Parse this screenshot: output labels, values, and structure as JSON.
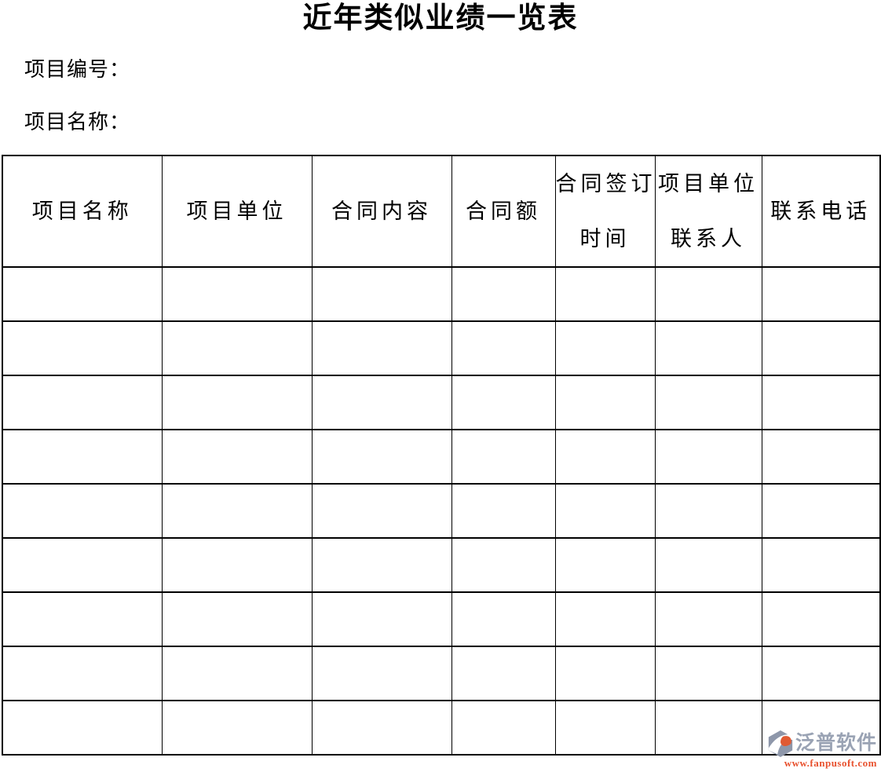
{
  "document": {
    "title": "近年类似业绩一览表",
    "fields": {
      "project_number_label": "项目编号：",
      "project_number_value": "",
      "project_name_label": "项目名称：",
      "project_name_value": ""
    }
  },
  "table": {
    "columns": [
      {
        "key": "project-name",
        "line1": "项目名称",
        "line2": ""
      },
      {
        "key": "project-unit",
        "line1": "项目单位",
        "line2": ""
      },
      {
        "key": "contract-content",
        "line1": "合同内容",
        "line2": ""
      },
      {
        "key": "contract-amount",
        "line1": "合同额",
        "line2": ""
      },
      {
        "key": "contract-sign-date",
        "line1": "合同签订",
        "line2": "时间"
      },
      {
        "key": "unit-contact",
        "line1": "项目单位",
        "line2": "联系人"
      },
      {
        "key": "contact-phone",
        "line1": "联系电话",
        "line2": ""
      }
    ],
    "empty_rows": 9
  },
  "watermark": {
    "icon": "fanpu-logo-icon",
    "brand": "泛普软件",
    "url": "www.fanpusoft.com",
    "colors": {
      "brand_text": "#9aa3b4",
      "url_text": "#e8512e",
      "icon_gray": "#8e97aa",
      "icon_orange": "#e05a33"
    }
  },
  "colors": {
    "page_background": "#ffffff",
    "table_border": "#000000",
    "text": "#000000"
  }
}
